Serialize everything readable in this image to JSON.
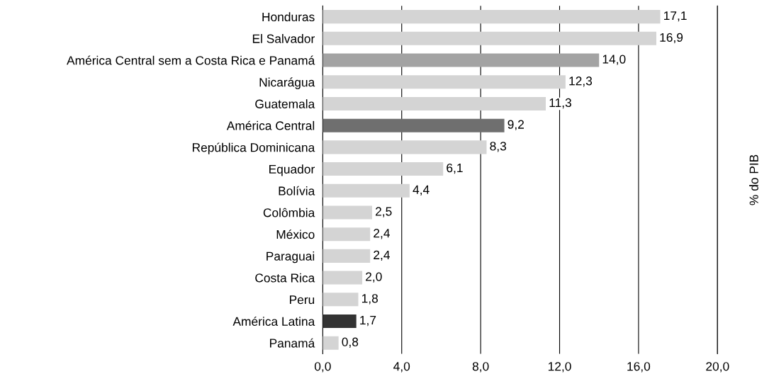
{
  "chart_data": {
    "type": "bar",
    "orientation": "horizontal",
    "annotations": [
      "% do PIB"
    ],
    "categories": [
      "Honduras",
      "El Salvador",
      "América Central sem a Costa Rica e Panamá",
      "Nicarágua",
      "Guatemala",
      "América Central",
      "República Dominicana",
      "Equador",
      "Bolívia",
      "Colômbia",
      "México",
      "Paraguai",
      "Costa Rica",
      "Peru",
      "América Latina",
      "Panamá"
    ],
    "values": [
      17.1,
      16.9,
      14.0,
      12.3,
      11.3,
      9.2,
      8.3,
      6.1,
      4.4,
      2.5,
      2.4,
      2.4,
      2.0,
      1.8,
      1.7,
      0.8
    ],
    "value_labels": [
      "17,1",
      "16,9",
      "14,0",
      "12,3",
      "11,3",
      "9,2",
      "8,3",
      "6,1",
      "4,4",
      "2,5",
      "2,4",
      "2,4",
      "2,0",
      "1,8",
      "1,7",
      "0,8"
    ],
    "colors": [
      "#d4d4d4",
      "#d4d4d4",
      "#a3a3a3",
      "#d4d4d4",
      "#d4d4d4",
      "#6f6f6f",
      "#d4d4d4",
      "#d4d4d4",
      "#d4d4d4",
      "#d4d4d4",
      "#d4d4d4",
      "#d4d4d4",
      "#d4d4d4",
      "#d4d4d4",
      "#333333",
      "#d4d4d4"
    ],
    "xlim": [
      0,
      20
    ],
    "xticks": [
      {
        "value": 0,
        "label": "0,0"
      },
      {
        "value": 4,
        "label": "4,0"
      },
      {
        "value": 8,
        "label": "8,0"
      },
      {
        "value": 12,
        "label": "12,0"
      },
      {
        "value": 16,
        "label": "16,0"
      },
      {
        "value": 20,
        "label": "20,0"
      }
    ],
    "grid": "x"
  }
}
